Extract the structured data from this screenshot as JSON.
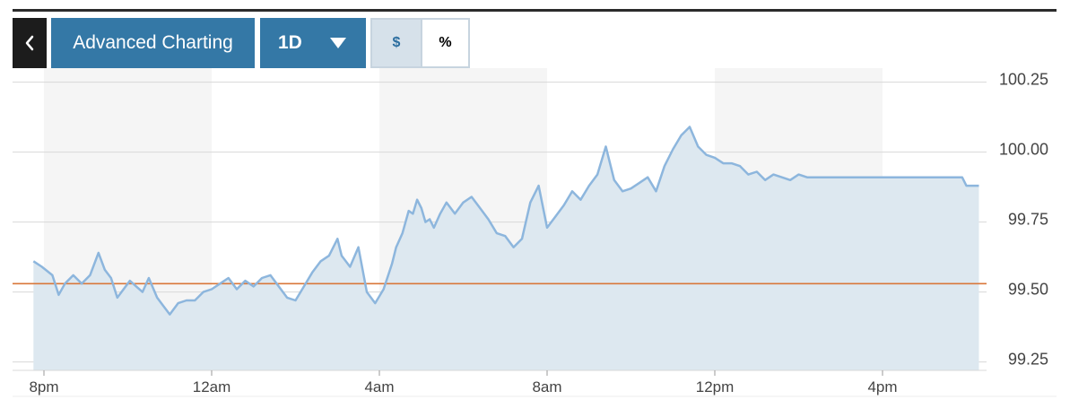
{
  "toolbar": {
    "back_icon": "chevron-left-icon",
    "advanced_label": "Advanced Charting",
    "range_label": "1D",
    "range_icon": "caret-down-icon",
    "dollar_label": "$",
    "percent_label": "%"
  },
  "colors": {
    "top_rule": "#2b2b2b",
    "back_bg": "#1c1c1c",
    "button_bg": "#3478a6",
    "dollar_bg": "#d6e1ea",
    "dollar_text": "#2b6d9f",
    "line": "#8db6dd",
    "area": "#dde8f0",
    "reference": "#d9773a",
    "band": "#f5f5f5",
    "grid": "#d8d8d8"
  },
  "chart_data": {
    "type": "area",
    "reference_line": 99.53,
    "ylim": [
      99.22,
      100.3
    ],
    "yticks": [
      99.25,
      99.5,
      99.75,
      100.0,
      100.25
    ],
    "ytick_labels": [
      "99.25",
      "99.50",
      "99.75",
      "100.00",
      "100.25"
    ],
    "xlim": [
      -0.2,
      22.5
    ],
    "xticks": [
      0,
      4,
      8,
      12,
      16,
      20
    ],
    "xtick_labels": [
      "8pm",
      "12am",
      "4am",
      "8am",
      "12pm",
      "4pm"
    ],
    "shaded_bands": [
      [
        0,
        4
      ],
      [
        8,
        12
      ],
      [
        16,
        20
      ]
    ],
    "grid": true,
    "series": [
      {
        "x": [
          -0.25,
          -0.05,
          0.2,
          0.35,
          0.5,
          0.7,
          0.9,
          1.1,
          1.3,
          1.45,
          1.6,
          1.75,
          1.9,
          2.05,
          2.2,
          2.35,
          2.5,
          2.7,
          2.85,
          3.0,
          3.2,
          3.4,
          3.6,
          3.8,
          4.0,
          4.2,
          4.4,
          4.6,
          4.8,
          5.0,
          5.2,
          5.4,
          5.6,
          5.8,
          6.0,
          6.2,
          6.4,
          6.6,
          6.8,
          7.0,
          7.1,
          7.3,
          7.5,
          7.7,
          7.9,
          8.1,
          8.3,
          8.4,
          8.55,
          8.7,
          8.8,
          8.9,
          9.0,
          9.1,
          9.2,
          9.3,
          9.45,
          9.6,
          9.8,
          10.0,
          10.2,
          10.4,
          10.6,
          10.8,
          11.0,
          11.2,
          11.4,
          11.6,
          11.8,
          12.0,
          12.2,
          12.4,
          12.6,
          12.8,
          13.0,
          13.2,
          13.4,
          13.6,
          13.8,
          14.0,
          14.2,
          14.4,
          14.6,
          14.8,
          15.0,
          15.2,
          15.4,
          15.6,
          15.8,
          16.0,
          16.2,
          16.4,
          16.6,
          16.8,
          17.0,
          17.2,
          17.4,
          17.6,
          17.8,
          18.0,
          18.2,
          18.4,
          18.8,
          19.2,
          19.6,
          20.0,
          20.4,
          20.8,
          21.2,
          21.6,
          21.9,
          22.0,
          22.3
        ],
        "y": [
          99.61,
          99.59,
          99.56,
          99.49,
          99.53,
          99.56,
          99.53,
          99.56,
          99.64,
          99.58,
          99.55,
          99.48,
          99.51,
          99.54,
          99.52,
          99.5,
          99.55,
          99.48,
          99.45,
          99.42,
          99.46,
          99.47,
          99.47,
          99.5,
          99.51,
          99.53,
          99.55,
          99.51,
          99.54,
          99.52,
          99.55,
          99.56,
          99.52,
          99.48,
          99.47,
          99.52,
          99.57,
          99.61,
          99.63,
          99.69,
          99.63,
          99.59,
          99.66,
          99.5,
          99.46,
          99.51,
          99.6,
          99.66,
          99.71,
          99.79,
          99.78,
          99.83,
          99.8,
          99.75,
          99.76,
          99.73,
          99.78,
          99.82,
          99.78,
          99.82,
          99.84,
          99.8,
          99.76,
          99.71,
          99.7,
          99.66,
          99.69,
          99.82,
          99.88,
          99.73,
          99.77,
          99.81,
          99.86,
          99.83,
          99.88,
          99.92,
          100.02,
          99.9,
          99.86,
          99.87,
          99.89,
          99.91,
          99.86,
          99.95,
          100.01,
          100.06,
          100.09,
          100.02,
          99.99,
          99.98,
          99.96,
          99.96,
          99.95,
          99.92,
          99.93,
          99.9,
          99.92,
          99.91,
          99.9,
          99.92,
          99.91,
          99.91,
          99.91,
          99.91,
          99.91,
          99.91,
          99.91,
          99.91,
          99.91,
          99.91,
          99.91,
          99.88,
          99.88
        ]
      }
    ]
  }
}
